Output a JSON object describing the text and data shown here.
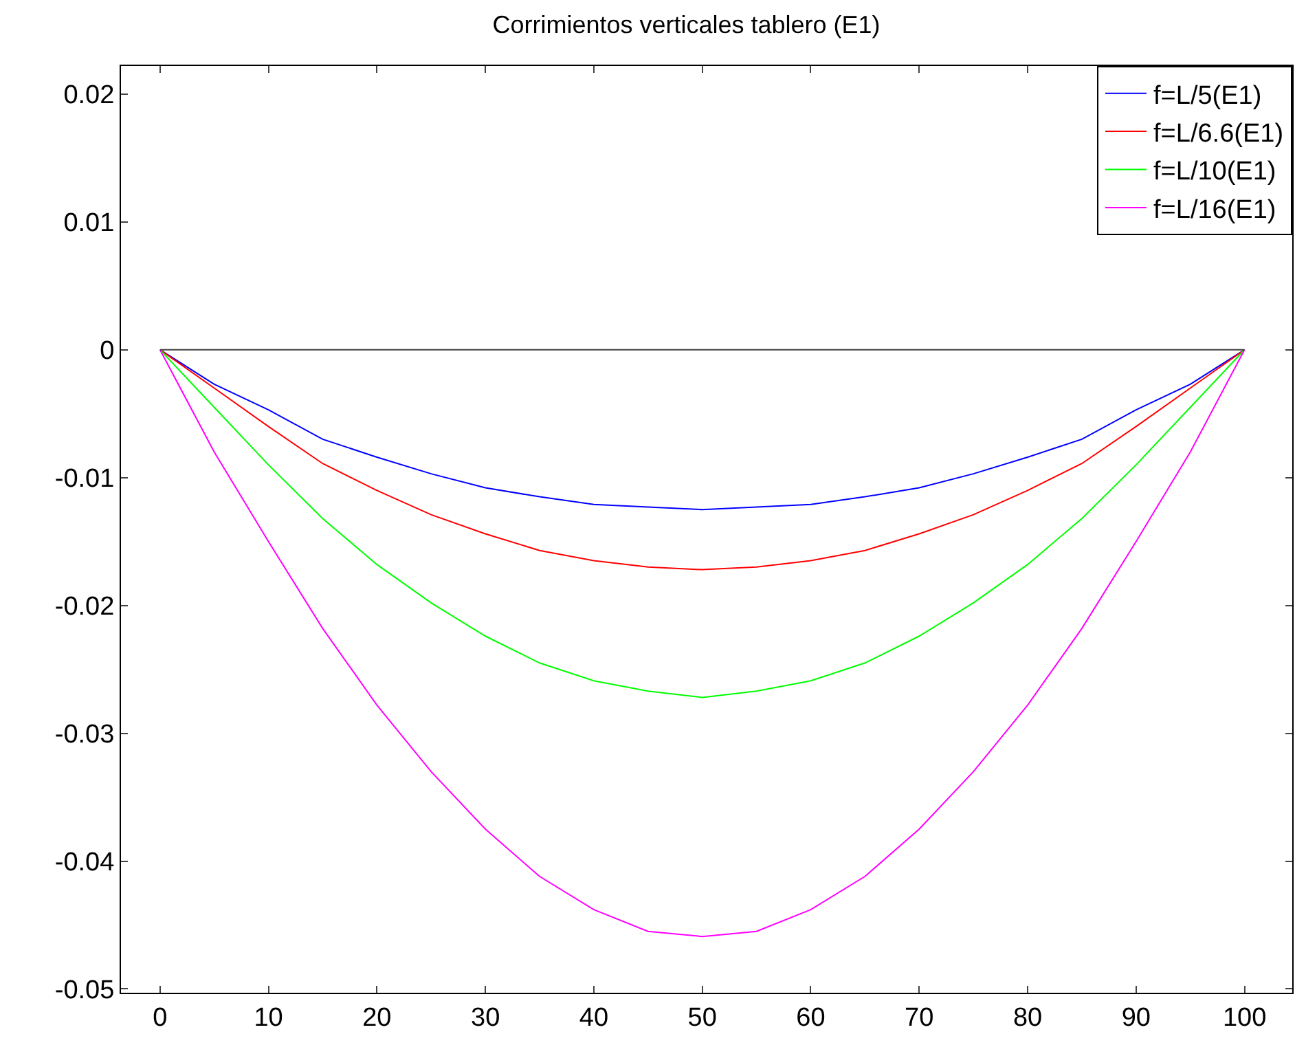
{
  "chart_data": {
    "type": "line",
    "title": "Corrimientos verticales tablero (E1)",
    "x": [
      0,
      5,
      10,
      15,
      20,
      25,
      30,
      35,
      40,
      45,
      50,
      55,
      60,
      65,
      70,
      75,
      80,
      85,
      90,
      95,
      100
    ],
    "series": [
      {
        "name": "f=L/5(E1)",
        "color": "#0000ff",
        "values": [
          0,
          -0.0027,
          -0.0047,
          -0.007,
          -0.0084,
          -0.0097,
          -0.0108,
          -0.0115,
          -0.0121,
          -0.0123,
          -0.0125,
          -0.0123,
          -0.0121,
          -0.0115,
          -0.0108,
          -0.0097,
          -0.0084,
          -0.007,
          -0.0047,
          -0.0027,
          0
        ]
      },
      {
        "name": "f=L/6.6(E1)",
        "color": "#ff0000",
        "values": [
          0,
          -0.003,
          -0.006,
          -0.0089,
          -0.011,
          -0.0129,
          -0.0144,
          -0.0157,
          -0.0165,
          -0.017,
          -0.0172,
          -0.017,
          -0.0165,
          -0.0157,
          -0.0144,
          -0.0129,
          -0.011,
          -0.0089,
          -0.006,
          -0.003,
          0
        ]
      },
      {
        "name": "f=L/10(E1)",
        "color": "#00ff00",
        "values": [
          0,
          -0.0045,
          -0.009,
          -0.0132,
          -0.0168,
          -0.0198,
          -0.0224,
          -0.0245,
          -0.0259,
          -0.0267,
          -0.0272,
          -0.0267,
          -0.0259,
          -0.0245,
          -0.0224,
          -0.0198,
          -0.0168,
          -0.0132,
          -0.009,
          -0.0045,
          0
        ]
      },
      {
        "name": "f=L/16(E1)",
        "color": "#ff00ff",
        "values": [
          0,
          -0.008,
          -0.015,
          -0.0218,
          -0.0278,
          -0.033,
          -0.0375,
          -0.0412,
          -0.0438,
          -0.0455,
          -0.0459,
          -0.0455,
          -0.0438,
          -0.0412,
          -0.0375,
          -0.033,
          -0.0278,
          -0.0218,
          -0.015,
          -0.008,
          0
        ]
      },
      {
        "color": "#404040",
        "x": [
          0,
          100
        ],
        "values": [
          0,
          0
        ]
      }
    ],
    "xlim": [
      -3.6,
      104.4
    ],
    "xticks": [
      0,
      10,
      20,
      30,
      40,
      50,
      60,
      70,
      80,
      90,
      100
    ],
    "ylim": [
      -0.0503,
      0.0222
    ],
    "yticks": [
      -0.05,
      -0.04,
      -0.03,
      -0.02,
      -0.01,
      0,
      0.01,
      0.02
    ],
    "legend": "top right",
    "line_style": "solid",
    "marker": "none"
  }
}
